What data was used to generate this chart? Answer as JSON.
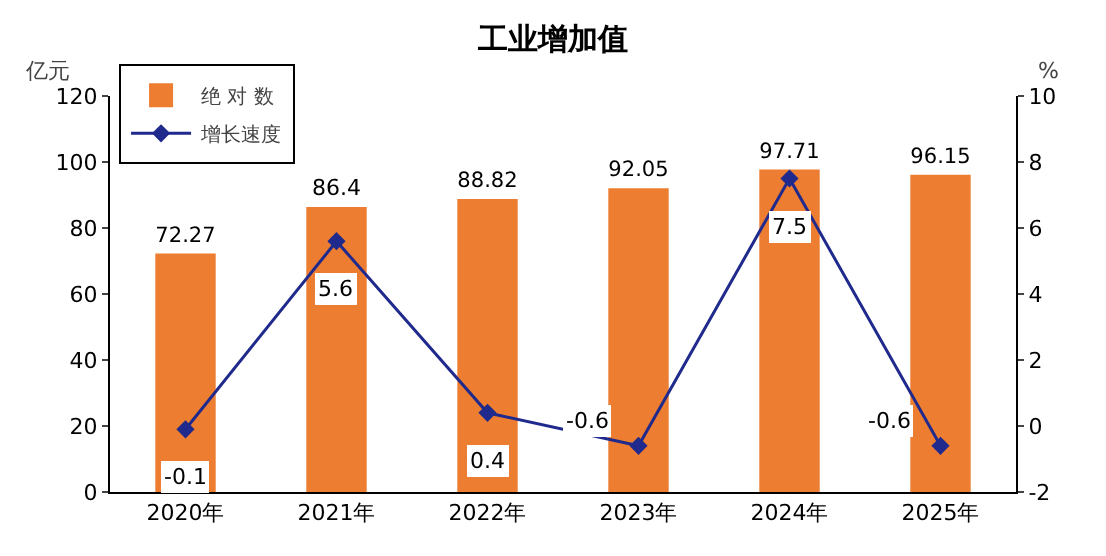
{
  "chart_data": {
    "type": "bar",
    "title": "工业增加值",
    "ylabel": "亿元",
    "y2label": "%",
    "categories": [
      "2020年",
      "2021年",
      "2022年",
      "2023年",
      "2024年",
      "2025年"
    ],
    "series": [
      {
        "name": "绝 对 数",
        "color": "#ed7d31",
        "values": [
          72.27,
          86.4,
          88.82,
          92.05,
          97.71,
          96.15
        ]
      },
      {
        "name": "增长速度",
        "type": "line",
        "axis": "y2",
        "color": "#1f2a8c",
        "marker": "diamond",
        "values": [
          -0.1,
          5.6,
          0.4,
          -0.6,
          7.5,
          -0.6
        ]
      }
    ],
    "ylim": [
      0,
      120
    ],
    "yticks": [
      0,
      20,
      40,
      60,
      80,
      100,
      120
    ],
    "y2lim": [
      -2,
      10
    ],
    "y2ticks": [
      -2,
      0,
      2,
      4,
      6,
      8,
      10
    ],
    "data_labels": true,
    "legend": "top left",
    "grid": false
  }
}
